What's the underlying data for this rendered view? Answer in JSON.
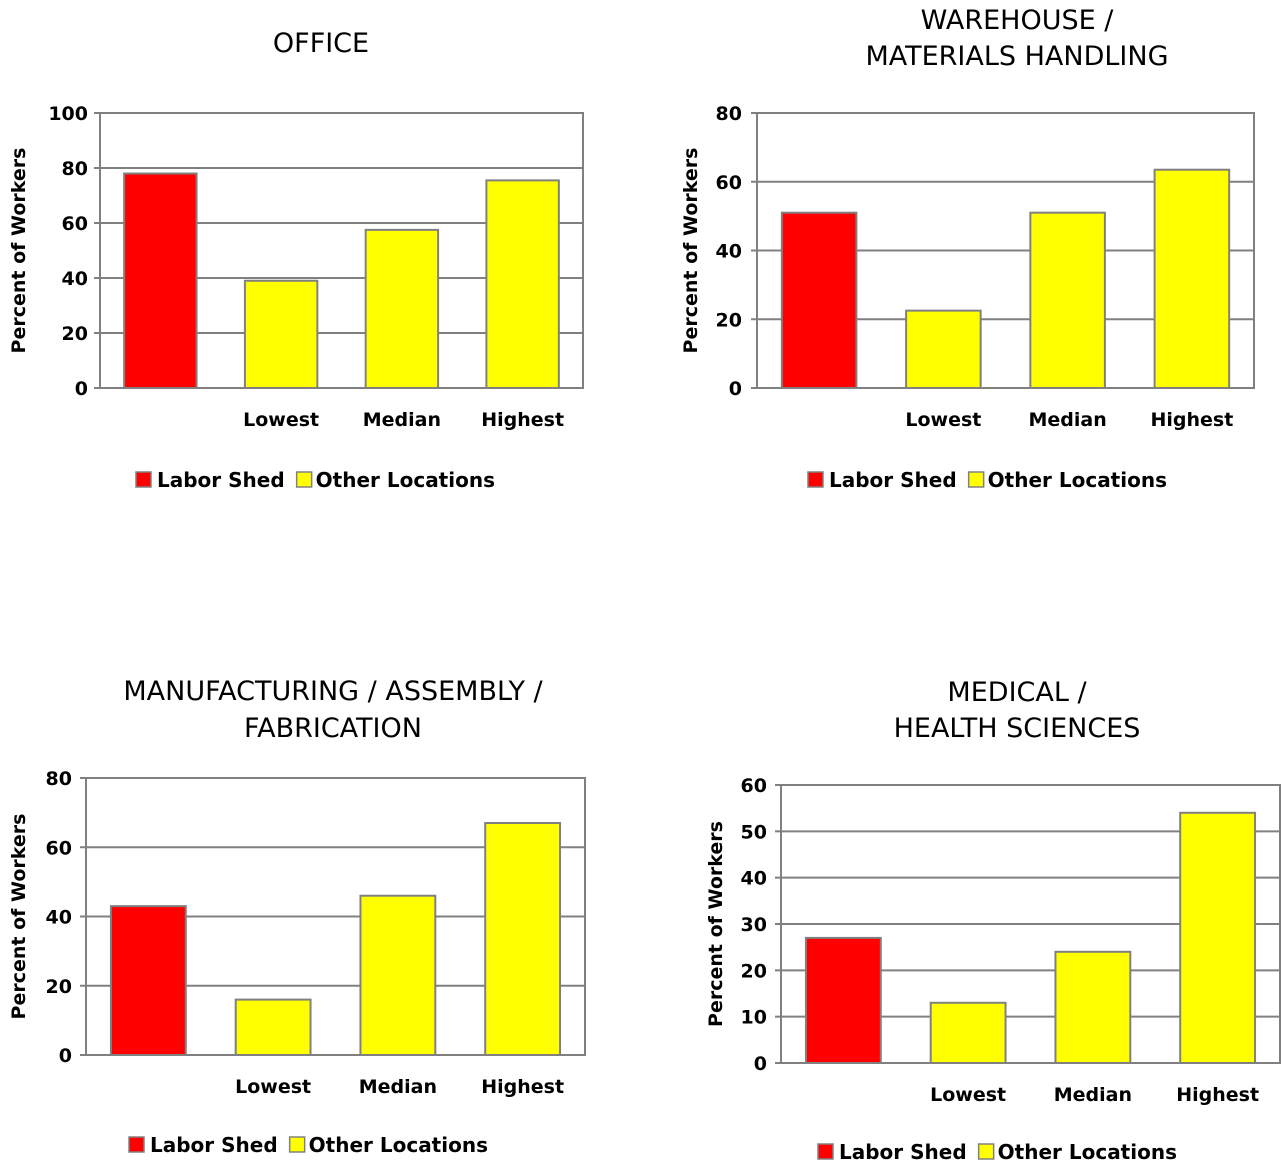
{
  "colors": {
    "labor_shed": "#ff0000",
    "other_locations": "#ffff00",
    "grid": "#808080"
  },
  "chart_data": [
    {
      "type": "bar",
      "title_lines": [
        "OFFICE"
      ],
      "categories": [
        "",
        "Lowest",
        "Median",
        "Highest"
      ],
      "values": [
        78,
        39,
        57.5,
        75.5
      ],
      "series_index": [
        0,
        1,
        1,
        1
      ],
      "ylabel": "Percent of Workers",
      "ylim": [
        0,
        100
      ],
      "yticks": [
        0,
        20,
        40,
        60,
        80,
        100
      ],
      "grid": true,
      "legend": [
        "Labor Shed",
        "Other Locations"
      ],
      "legend_position": "bottom"
    },
    {
      "type": "bar",
      "title_lines": [
        "WAREHOUSE /",
        "MATERIALS HANDLING"
      ],
      "categories": [
        "",
        "Lowest",
        "Median",
        "Highest"
      ],
      "values": [
        51,
        22.5,
        51,
        63.5
      ],
      "series_index": [
        0,
        1,
        1,
        1
      ],
      "ylabel": "Percent of Workers",
      "ylim": [
        0,
        80
      ],
      "yticks": [
        0,
        20,
        40,
        60,
        80
      ],
      "grid": true,
      "legend": [
        "Labor Shed",
        "Other Locations"
      ],
      "legend_position": "bottom"
    },
    {
      "type": "bar",
      "title_lines": [
        "MANUFACTURING / ASSEMBLY /",
        "FABRICATION"
      ],
      "categories": [
        "",
        "Lowest",
        "Median",
        "Highest"
      ],
      "values": [
        43,
        16,
        46,
        67
      ],
      "series_index": [
        0,
        1,
        1,
        1
      ],
      "ylabel": "Percent of Workers",
      "ylim": [
        0,
        80
      ],
      "yticks": [
        0,
        20,
        40,
        60,
        80
      ],
      "grid": true,
      "legend": [
        "Labor Shed",
        "Other Locations"
      ],
      "legend_position": "bottom"
    },
    {
      "type": "bar",
      "title_lines": [
        "MEDICAL /",
        "HEALTH SCIENCES"
      ],
      "categories": [
        "",
        "Lowest",
        "Median",
        "Highest"
      ],
      "values": [
        27,
        13,
        24,
        54
      ],
      "series_index": [
        0,
        1,
        1,
        1
      ],
      "ylabel": "Percent of Workers",
      "ylim": [
        0,
        60
      ],
      "yticks": [
        0,
        10,
        20,
        30,
        40,
        50,
        60
      ],
      "grid": true,
      "legend": [
        "Labor Shed",
        "Other Locations"
      ],
      "legend_position": "bottom"
    }
  ]
}
